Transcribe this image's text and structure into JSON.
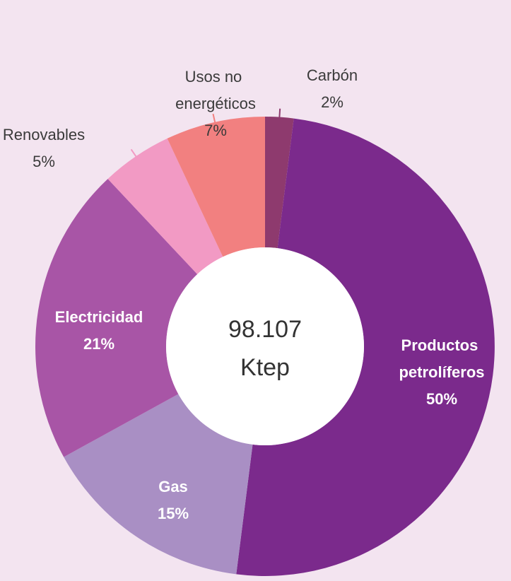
{
  "chart_data": {
    "type": "donut",
    "categories": [
      "Carbón",
      "Productos petrolíferos",
      "Gas",
      "Electricidad",
      "Renovables",
      "Usos no energéticos"
    ],
    "values": [
      2,
      50,
      15,
      21,
      5,
      7
    ],
    "value_labels": [
      "2%",
      "50%",
      "15%",
      "21%",
      "5%",
      "7%"
    ],
    "colors": [
      "#8e3a6e",
      "#7b2a8c",
      "#a98fc4",
      "#a855a6",
      "#f29ac4",
      "#f28080"
    ],
    "center_value": "98.107",
    "center_unit": "Ktep"
  }
}
